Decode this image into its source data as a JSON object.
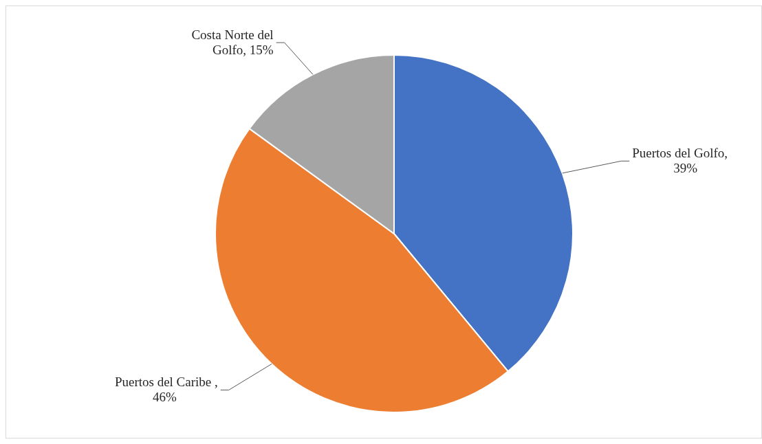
{
  "chart_data": {
    "type": "pie",
    "categories": [
      "Puertos del Golfo",
      "Puertos del Caribe ",
      "Costa Norte del Golfo"
    ],
    "values": [
      39,
      46,
      15
    ],
    "colors": [
      "#4472c4",
      "#ed7d31",
      "#a5a5a5"
    ],
    "value_labels": [
      ", 39%",
      ", 46%",
      ", 15%"
    ],
    "legend": false
  }
}
